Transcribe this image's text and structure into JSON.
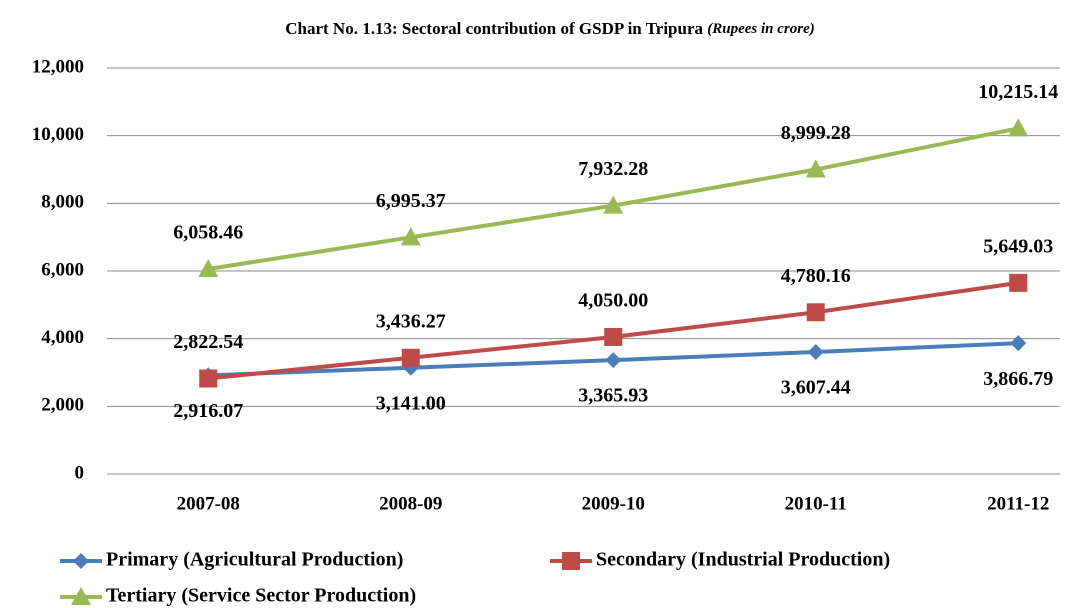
{
  "chart_data": {
    "type": "line",
    "title": "Chart No. 1.13: Sectoral contribution of GSDP in Tripura",
    "subtitle": "(Rupees in crore)",
    "categories": [
      "2007-08",
      "2008-09",
      "2009-10",
      "2010-11",
      "2011-12"
    ],
    "series": [
      {
        "name": "Primary (Agricultural Production)",
        "color": "#4a7ebb",
        "marker": "diamond",
        "label_position": "below",
        "values": [
          2916.07,
          3141.0,
          3365.93,
          3607.44,
          3866.79
        ],
        "value_labels": [
          "2,916.07",
          "3,141.00",
          "3,365.93",
          "3,607.44",
          "3,866.79"
        ]
      },
      {
        "name": "Secondary (Industrial Production)",
        "color": "#be4b48",
        "marker": "square",
        "label_position": "above",
        "values": [
          2822.54,
          3436.27,
          4050.0,
          4780.16,
          5649.03
        ],
        "value_labels": [
          "2,822.54",
          "3,436.27",
          "4,050.00",
          "4,780.16",
          "5,649.03"
        ]
      },
      {
        "name": "Tertiary (Service Sector Production)",
        "color": "#98b954",
        "marker": "triangle",
        "label_position": "above",
        "values": [
          6058.46,
          6995.37,
          7932.28,
          8999.28,
          10215.14
        ],
        "value_labels": [
          "6,058.46",
          "6,995.37",
          "7,932.28",
          "8,999.28",
          "10,215.14"
        ]
      }
    ],
    "ylim": [
      0,
      12000
    ],
    "yticks": [
      0,
      {
        "value": 2000,
        "label": "2,000"
      },
      {
        "value": 4000,
        "label": "4,000"
      },
      {
        "value": 6000,
        "label": "6,000"
      },
      {
        "value": 8000,
        "label": "8,000"
      },
      {
        "value": 10000,
        "label": "10,000"
      },
      {
        "value": 12000,
        "label": "12,000"
      }
    ],
    "grid": true,
    "legend": "bottom"
  }
}
